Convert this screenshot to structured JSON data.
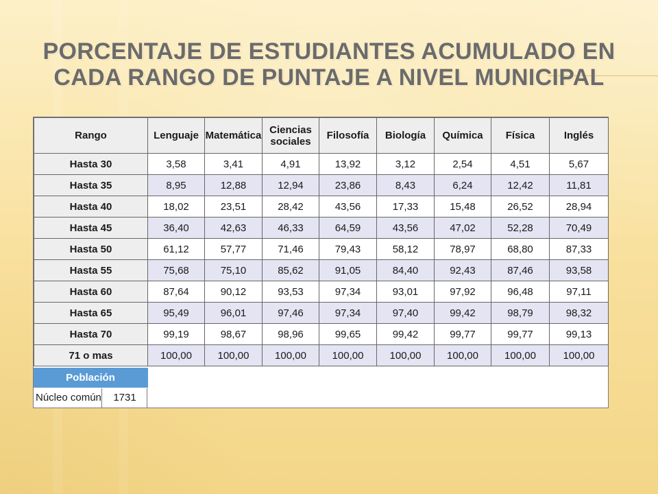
{
  "title": "PORCENTAJE DE ESTUDIANTES ACUMULADO EN CADA RANGO DE PUNTAJE A NIVEL MUNICIPAL",
  "table": {
    "columns": [
      "Rango",
      "Lenguaje",
      "Matemática",
      "Ciencias sociales",
      "Filosofía",
      "Biología",
      "Química",
      "Física",
      "Inglés"
    ],
    "rows": [
      [
        "Hasta 30",
        "3,58",
        "3,41",
        "4,91",
        "13,92",
        "3,12",
        "2,54",
        "4,51",
        "5,67"
      ],
      [
        "Hasta 35",
        "8,95",
        "12,88",
        "12,94",
        "23,86",
        "8,43",
        "6,24",
        "12,42",
        "11,81"
      ],
      [
        "Hasta 40",
        "18,02",
        "23,51",
        "28,42",
        "43,56",
        "17,33",
        "15,48",
        "26,52",
        "28,94"
      ],
      [
        "Hasta 45",
        "36,40",
        "42,63",
        "46,33",
        "64,59",
        "43,56",
        "47,02",
        "52,28",
        "70,49"
      ],
      [
        "Hasta 50",
        "61,12",
        "57,77",
        "71,46",
        "79,43",
        "58,12",
        "78,97",
        "68,80",
        "87,33"
      ],
      [
        "Hasta 55",
        "75,68",
        "75,10",
        "85,62",
        "91,05",
        "84,40",
        "92,43",
        "87,46",
        "93,58"
      ],
      [
        "Hasta 60",
        "87,64",
        "90,12",
        "93,53",
        "97,34",
        "93,01",
        "97,92",
        "96,48",
        "97,11"
      ],
      [
        "Hasta 65",
        "95,49",
        "96,01",
        "97,46",
        "97,34",
        "97,40",
        "99,42",
        "98,79",
        "98,32"
      ],
      [
        "Hasta 70",
        "99,19",
        "98,67",
        "98,96",
        "99,65",
        "99,42",
        "99,77",
        "99,77",
        "99,13"
      ],
      [
        "71 o mas",
        "100,00",
        "100,00",
        "100,00",
        "100,00",
        "100,00",
        "100,00",
        "100,00",
        "100,00"
      ]
    ]
  },
  "poblacion": {
    "title": "Población",
    "name": "Núcleo común",
    "value": "1731"
  },
  "colors": {
    "background": "#fbe9b3",
    "header_gray": "#eeeeee",
    "row_alt": "#e4e4f3",
    "population_blue": "#5b9bd5",
    "title_gray": "#6b6b6b"
  }
}
